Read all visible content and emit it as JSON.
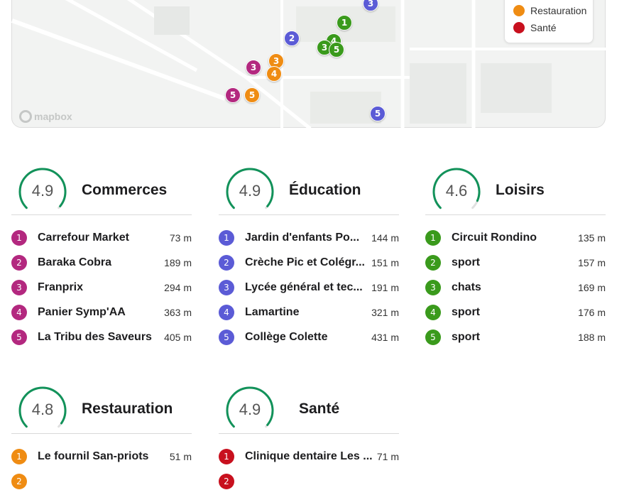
{
  "map": {
    "attribution": "mapbox",
    "markers": [
      {
        "label": "3",
        "color": "#5b5bd6"
      },
      {
        "label": "1",
        "color": "#3a9a1c"
      },
      {
        "label": "2",
        "color": "#5b5bd6"
      },
      {
        "label": "4",
        "color": "#3a9a1c"
      },
      {
        "label": "3",
        "color": "#3a9a1c"
      },
      {
        "label": "5",
        "color": "#3a9a1c"
      },
      {
        "label": "3",
        "color": "#ef8c13"
      },
      {
        "label": "4",
        "color": "#ef8c13"
      },
      {
        "label": "3",
        "color": "#b3287f"
      },
      {
        "label": "5",
        "color": "#b3287f"
      },
      {
        "label": "5",
        "color": "#ef8c13"
      },
      {
        "label": "5",
        "color": "#5b5bd6"
      }
    ]
  },
  "legend": {
    "items": [
      {
        "label": "Restauration",
        "color": "#ef8c13"
      },
      {
        "label": "Santé",
        "color": "#c8101e"
      }
    ]
  },
  "categories": [
    {
      "title": "Commerces",
      "score": "4.9",
      "color": "#b3287f",
      "rating_fraction": 0.98,
      "items": [
        {
          "num": "1",
          "name": "Carrefour Market",
          "distance": "73 m"
        },
        {
          "num": "2",
          "name": "Baraka Cobra",
          "distance": "189 m"
        },
        {
          "num": "3",
          "name": "Franprix",
          "distance": "294 m"
        },
        {
          "num": "4",
          "name": "Panier Symp'AA",
          "distance": "363 m"
        },
        {
          "num": "5",
          "name": "La Tribu des Saveurs",
          "distance": "405 m"
        }
      ]
    },
    {
      "title": "Éducation",
      "score": "4.9",
      "color": "#5b5bd6",
      "rating_fraction": 0.98,
      "items": [
        {
          "num": "1",
          "name": "Jardin d'enfants Po...",
          "distance": "144 m"
        },
        {
          "num": "2",
          "name": "Crèche Pic et Colégr...",
          "distance": "151 m"
        },
        {
          "num": "3",
          "name": "Lycée général et tec...",
          "distance": "191 m"
        },
        {
          "num": "4",
          "name": "Lamartine",
          "distance": "321 m"
        },
        {
          "num": "5",
          "name": "Collège Colette",
          "distance": "431 m"
        }
      ]
    },
    {
      "title": "Loisirs",
      "score": "4.6",
      "color": "#3a9a1c",
      "rating_fraction": 0.92,
      "items": [
        {
          "num": "1",
          "name": "Circuit Rondino",
          "distance": "135 m"
        },
        {
          "num": "2",
          "name": "sport",
          "distance": "157 m"
        },
        {
          "num": "3",
          "name": "chats",
          "distance": "169 m"
        },
        {
          "num": "4",
          "name": "sport",
          "distance": "176 m"
        },
        {
          "num": "5",
          "name": "sport",
          "distance": "188 m"
        }
      ]
    },
    {
      "title": "Restauration",
      "score": "4.8",
      "color": "#ef8c13",
      "rating_fraction": 0.96,
      "items": [
        {
          "num": "1",
          "name": "Le fournil San-priots",
          "distance": "51 m"
        },
        {
          "num": "2",
          "name": "",
          "distance": ""
        }
      ]
    },
    {
      "title": "Santé",
      "score": "4.9",
      "color": "#c8101e",
      "rating_fraction": 0.98,
      "items": [
        {
          "num": "1",
          "name": "Clinique dentaire Les ...",
          "distance": "71 m"
        },
        {
          "num": "2",
          "name": "",
          "distance": ""
        }
      ]
    }
  ],
  "gauge_color": "#12925a",
  "gauge_track_color": "#e0e0e0"
}
